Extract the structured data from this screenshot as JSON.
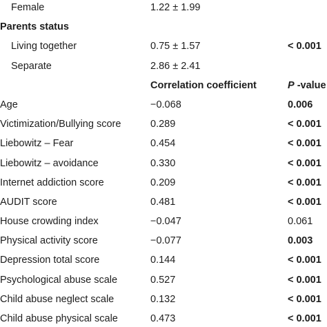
{
  "top_section": {
    "female": {
      "label": "Female",
      "value": "1.22 ± 1.99",
      "p": ""
    },
    "parents_status": {
      "heading": "Parents status",
      "rows": [
        {
          "label": "Living together",
          "value": "0.75 ± 1.57",
          "p": "< 0.001",
          "p_bold": true
        },
        {
          "label": "Separate",
          "value": "2.86 ± 2.41",
          "p": "",
          "p_bold": false
        }
      ]
    }
  },
  "correlation_header": {
    "coefficient": "Correlation coefficient",
    "p_letter": "P",
    "p_rest": " -value"
  },
  "correlation_rows": [
    {
      "label": "Age",
      "value": "−0.068",
      "p": "0.006",
      "p_bold": true
    },
    {
      "label": "Victimization/Bullying score",
      "value": "0.289",
      "p": "< 0.001",
      "p_bold": true
    },
    {
      "label": "Liebowitz – Fear",
      "value": "0.454",
      "p": "< 0.001",
      "p_bold": true
    },
    {
      "label": "Liebowitz – avoidance",
      "value": "0.330",
      "p": "< 0.001",
      "p_bold": true
    },
    {
      "label": "Internet addiction score",
      "value": "0.209",
      "p": "< 0.001",
      "p_bold": true
    },
    {
      "label": "AUDIT score",
      "value": "0.481",
      "p": "< 0.001",
      "p_bold": true
    },
    {
      "label": "House crowding index",
      "value": "−0.047",
      "p": "0.061",
      "p_bold": false
    },
    {
      "label": "Physical activity score",
      "value": "−0.077",
      "p": "0.003",
      "p_bold": true
    },
    {
      "label": "Depression total score",
      "value": "0.144",
      "p": "< 0.001",
      "p_bold": true
    },
    {
      "label": "Psychological abuse scale",
      "value": "0.527",
      "p": "< 0.001",
      "p_bold": true
    },
    {
      "label": "Child abuse neglect scale",
      "value": "0.132",
      "p": "< 0.001",
      "p_bold": true
    },
    {
      "label": "Child abuse physical scale",
      "value": "0.473",
      "p": "< 0.001",
      "p_bold": true
    }
  ]
}
